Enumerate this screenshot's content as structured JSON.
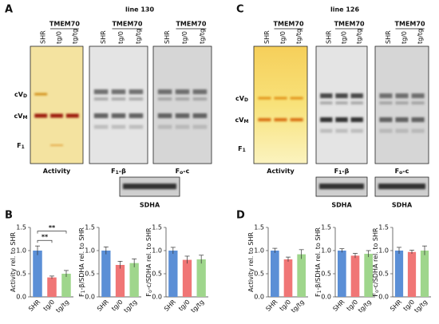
{
  "panel_labels": [
    "A",
    "B",
    "C",
    "D"
  ],
  "gel_panels": [
    {
      "line": "line 130",
      "group": "TMEM70",
      "lanes": [
        "SHR",
        "tg/0",
        "tg/tg"
      ],
      "band_labels": [
        {
          "text": "cV",
          "sub": "D"
        },
        {
          "text": "cV",
          "sub": "M"
        },
        {
          "text": "F",
          "sub": "1"
        }
      ],
      "blots": [
        {
          "text": "Activity"
        },
        {
          "text": "F",
          "sub": "1",
          "tail": "-β"
        },
        {
          "text": "F",
          "sub": "o",
          "tail": "-c"
        }
      ],
      "loading": "SDHA"
    },
    {
      "line": "line 126",
      "group": "TMEM70",
      "lanes": [
        "SHR",
        "tg/0",
        "tg/tg"
      ],
      "band_labels": [
        {
          "text": "cV",
          "sub": "D"
        },
        {
          "text": "cV",
          "sub": "M"
        },
        {
          "text": "F",
          "sub": "1"
        }
      ],
      "blots": [
        {
          "text": "Activity"
        },
        {
          "text": "F",
          "sub": "1",
          "tail": "-β"
        },
        {
          "text": "F",
          "sub": "o",
          "tail": "-c"
        }
      ],
      "loading": "SDHA"
    }
  ],
  "chart_data": [
    {
      "type": "bar",
      "ylabel": {
        "text": "Activity rel. to SHR"
      },
      "categories": [
        "SHR",
        "tg/0",
        "tg/tg"
      ],
      "values": [
        1.0,
        0.42,
        0.5
      ],
      "errors": [
        0.1,
        0.03,
        0.07
      ],
      "colors": [
        "#5b8fd6",
        "#f07676",
        "#9fd68c"
      ],
      "ylim": [
        0,
        1.5
      ],
      "yticks": [
        {
          "value": 0,
          "label": "0.0"
        },
        0.5,
        {
          "value": 1,
          "label": "1.0"
        },
        1.5
      ],
      "annotations": [
        "**",
        "**"
      ]
    },
    {
      "type": "bar",
      "ylabel": {
        "text": "F",
        "sub": "1",
        "tail": "-β/SDHA rel. to SHR"
      },
      "categories": [
        "SHR",
        "tg/0",
        "tg/tg"
      ],
      "values": [
        1.0,
        0.69,
        0.73
      ],
      "errors": [
        0.08,
        0.08,
        0.09
      ],
      "colors": [
        "#5b8fd6",
        "#f07676",
        "#9fd68c"
      ],
      "ylim": [
        0,
        1.5
      ],
      "yticks": [
        {
          "value": 0,
          "label": "0.0"
        },
        0.5,
        {
          "value": 1,
          "label": "1.0"
        },
        1.5
      ]
    },
    {
      "type": "bar",
      "ylabel": {
        "text": "F",
        "sub": "o",
        "tail": "-c/SDHA rel. to SHR"
      },
      "categories": [
        "SHR",
        "tg/0",
        "tg/tg"
      ],
      "values": [
        1.0,
        0.8,
        0.81
      ],
      "errors": [
        0.07,
        0.08,
        0.09
      ],
      "colors": [
        "#5b8fd6",
        "#f07676",
        "#9fd68c"
      ],
      "ylim": [
        0,
        1.5
      ],
      "yticks": [
        {
          "value": 0,
          "label": "0.0"
        },
        0.5,
        {
          "value": 1,
          "label": "1.0"
        },
        1.5
      ]
    },
    {
      "type": "bar",
      "ylabel": {
        "text": "Activity rel. to SHR"
      },
      "categories": [
        "SHR",
        "tg/0",
        "tg/tg"
      ],
      "values": [
        1.0,
        0.81,
        0.92
      ],
      "errors": [
        0.05,
        0.05,
        0.1
      ],
      "colors": [
        "#5b8fd6",
        "#f07676",
        "#9fd68c"
      ],
      "ylim": [
        0,
        1.5
      ],
      "yticks": [
        {
          "value": 0,
          "label": "0.0"
        },
        0.5,
        {
          "value": 1,
          "label": "1.0"
        },
        1.5
      ]
    },
    {
      "type": "bar",
      "ylabel": {
        "text": "F",
        "sub": "1",
        "tail": "-β/SDHA rel. to SHR"
      },
      "categories": [
        "SHR",
        "tg/0",
        "tg/tg"
      ],
      "values": [
        1.0,
        0.89,
        0.93
      ],
      "errors": [
        0.04,
        0.05,
        0.07
      ],
      "colors": [
        "#5b8fd6",
        "#f07676",
        "#9fd68c"
      ],
      "ylim": [
        0,
        1.5
      ],
      "yticks": [
        {
          "value": 0,
          "label": "0.0"
        },
        0.5,
        {
          "value": 1,
          "label": "1.0"
        },
        1.5
      ]
    },
    {
      "type": "bar",
      "ylabel": {
        "text": "F",
        "sub": "o",
        "tail": "-c/SDHA rel. to SHR"
      },
      "categories": [
        "SHR",
        "tg/0",
        "tg/tg"
      ],
      "values": [
        1.0,
        0.97,
        1.0
      ],
      "errors": [
        0.07,
        0.04,
        0.1
      ],
      "colors": [
        "#5b8fd6",
        "#f07676",
        "#9fd68c"
      ],
      "ylim": [
        0,
        1.5
      ],
      "yticks": [
        {
          "value": 0,
          "label": "0.0"
        },
        0.5,
        {
          "value": 1,
          "label": "1.0"
        },
        1.5
      ]
    }
  ]
}
